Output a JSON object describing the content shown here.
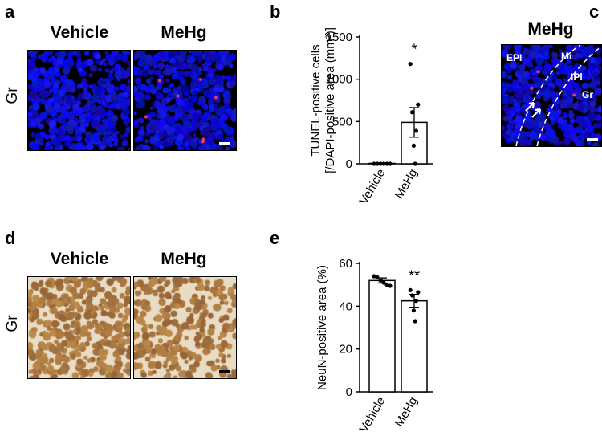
{
  "panels": {
    "a": {
      "letter": "a",
      "titles": [
        "Vehicle",
        "MeHg"
      ],
      "row_label": "Gr"
    },
    "b": {
      "letter": "b"
    },
    "c": {
      "letter": "c",
      "title": "MeHg",
      "layers": [
        "EPI",
        "Mi",
        "IPl",
        "Gr"
      ]
    },
    "d": {
      "letter": "d",
      "titles": [
        "Vehicle",
        "MeHg"
      ],
      "row_label": "Gr"
    },
    "e": {
      "letter": "e"
    }
  },
  "colors": {
    "nuclear_stain": "#1a1aff",
    "tunel_marker": "#ff3c6e",
    "ihc_background": "#e9dcc4",
    "ihc_cell": "#b07a45",
    "scale_bar_light": "#ffffff",
    "scale_bar_dark": "#000000"
  },
  "chart_data": [
    {
      "panel": "b",
      "type": "bar",
      "categories": [
        "Vehicle",
        "MeHg"
      ],
      "values": [
        5,
        490
      ],
      "error_sem": [
        3,
        175
      ],
      "points": [
        [
          0,
          0,
          0,
          0,
          0,
          0
        ],
        [
          1180,
          700,
          610,
          390,
          215,
          0
        ]
      ],
      "ylabel_line1": "TUNEL-positive cells",
      "ylabel_line2": "[/DAPI-positive area (mm²)]",
      "ylim": [
        0,
        1500
      ],
      "yticks": [
        "0",
        "500",
        "1000",
        "1500"
      ],
      "ytick_values": [
        0,
        500,
        1000,
        1500
      ],
      "significance": [
        "",
        "*"
      ]
    },
    {
      "panel": "e",
      "type": "bar",
      "categories": [
        "Vehicle",
        "MeHg"
      ],
      "values": [
        52,
        42.5
      ],
      "error_sem": [
        1.2,
        3
      ],
      "points": [
        [
          54,
          53.5,
          52,
          51,
          50,
          49.5
        ],
        [
          47.5,
          46.5,
          45,
          42.5,
          38,
          33
        ]
      ],
      "ylabel": "NeuN-positive area (%)",
      "ylim": [
        0,
        60
      ],
      "yticks": [
        "0",
        "20",
        "40",
        "60"
      ],
      "ytick_values": [
        0,
        20,
        40,
        60
      ],
      "significance": [
        "",
        "**"
      ]
    }
  ]
}
